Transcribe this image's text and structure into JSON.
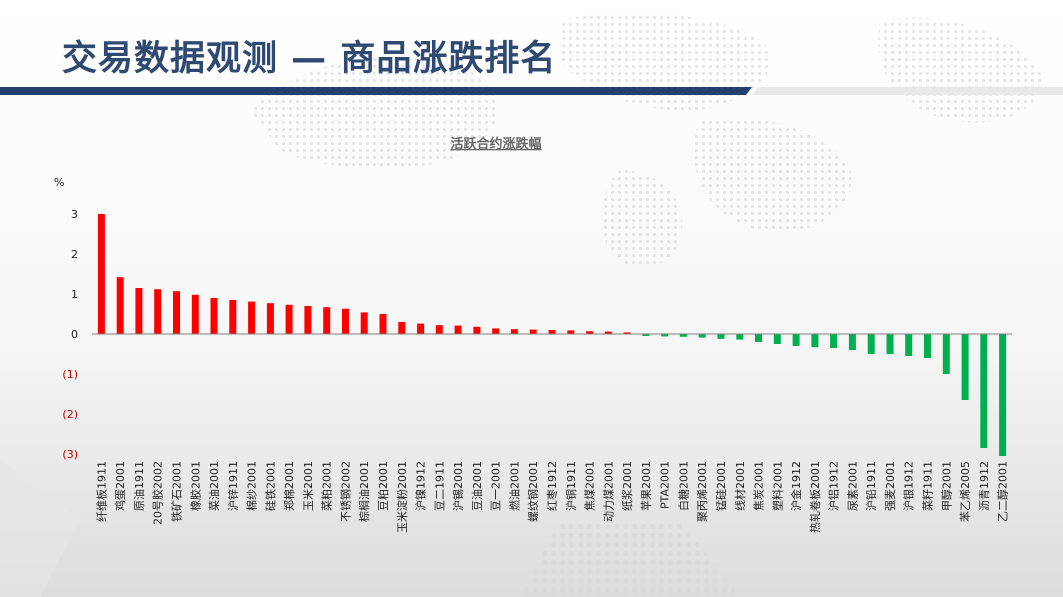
{
  "slide": {
    "title": "交易数据观测 — 商品涨跌排名"
  },
  "colors": {
    "title_text": "#2e4a73",
    "title_bar": "#23406e",
    "positive_bar": "#ff0000",
    "negative_bar": "#00b050",
    "negative_tick": "#c00000"
  },
  "chart_data": {
    "type": "bar",
    "title": "活跃合约涨跌幅",
    "ylabel": "%",
    "ylim": [
      -3,
      3
    ],
    "ytick_values": [
      3,
      2,
      1,
      0,
      -1,
      -2,
      -3
    ],
    "ytick_labels": [
      "3",
      "2",
      "1",
      "0",
      "(1)",
      "(2)",
      "(3)"
    ],
    "grid": false,
    "legend": "none",
    "categories": [
      "纤维板1911",
      "鸡蛋2001",
      "原油1911",
      "20号胶2002",
      "铁矿石2001",
      "橡胶2001",
      "菜油2001",
      "沪锌1911",
      "棉纱2001",
      "硅铁2001",
      "郑棉2001",
      "玉米2001",
      "菜粕2001",
      "不锈钢2002",
      "棕榈油2001",
      "豆粕2001",
      "玉米淀粉2001",
      "沪镍1912",
      "豆二1911",
      "沪锡2001",
      "豆油2001",
      "豆一2001",
      "燃油2001",
      "螺纹钢2001",
      "红枣1912",
      "沪铜1911",
      "焦煤2001",
      "动力煤2001",
      "纸浆2001",
      "苹果2001",
      "PTA2001",
      "白糖2001",
      "聚丙烯2001",
      "锰硅2001",
      "线材2001",
      "焦炭2001",
      "塑料2001",
      "沪金1912",
      "热轧卷板2001",
      "沪铝1912",
      "尿素2001",
      "沪铅1911",
      "强麦2001",
      "沪银1912",
      "菜籽1911",
      "甲醇2001",
      "苯乙烯2005",
      "沥青1912",
      "乙二醇2001"
    ],
    "values": [
      3.0,
      1.42,
      1.15,
      1.12,
      1.07,
      0.98,
      0.9,
      0.85,
      0.81,
      0.77,
      0.73,
      0.7,
      0.67,
      0.63,
      0.54,
      0.5,
      0.3,
      0.26,
      0.22,
      0.21,
      0.18,
      0.14,
      0.12,
      0.11,
      0.1,
      0.09,
      0.07,
      0.06,
      0.04,
      -0.05,
      -0.06,
      -0.07,
      -0.09,
      -0.12,
      -0.14,
      -0.2,
      -0.25,
      -0.3,
      -0.33,
      -0.35,
      -0.4,
      -0.5,
      -0.5,
      -0.55,
      -0.6,
      -1.0,
      -1.65,
      -2.85,
      -3.05
    ]
  }
}
